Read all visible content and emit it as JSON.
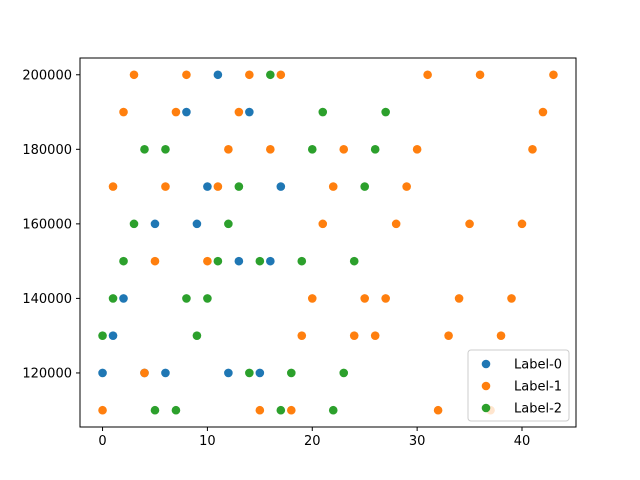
{
  "chart_data": {
    "type": "scatter",
    "title": "",
    "xlabel": "",
    "ylabel": "",
    "xlim": [
      -2.15,
      45.15
    ],
    "ylim": [
      105500,
      204500
    ],
    "x_ticks": [
      0,
      10,
      20,
      30,
      40
    ],
    "y_ticks": [
      120000,
      140000,
      160000,
      180000,
      200000
    ],
    "x_tick_labels": [
      "0",
      "10",
      "20",
      "30",
      "40"
    ],
    "y_tick_labels": [
      "120000",
      "140000",
      "160000",
      "180000",
      "200000"
    ],
    "grid": false,
    "legend_position": "lower-right",
    "series": [
      {
        "name": "Label-0",
        "color": "#1f77b4",
        "x": [
          0,
          1,
          2,
          4,
          5,
          6,
          8,
          9,
          10,
          11,
          12,
          13,
          14,
          15,
          16,
          17
        ],
        "y": [
          120000,
          130000,
          140000,
          120000,
          160000,
          120000,
          190000,
          160000,
          170000,
          200000,
          120000,
          150000,
          190000,
          120000,
          150000,
          170000
        ]
      },
      {
        "name": "Label-1",
        "color": "#ff7f0e",
        "x": [
          0,
          1,
          2,
          3,
          4,
          5,
          6,
          7,
          8,
          10,
          11,
          12,
          13,
          14,
          15,
          16,
          17,
          18,
          19,
          20,
          21,
          22,
          23,
          24,
          25,
          26,
          27,
          28,
          29,
          30,
          31,
          32,
          33,
          34,
          35,
          36,
          37,
          38,
          39,
          40,
          41,
          42,
          43
        ],
        "y": [
          110000,
          170000,
          190000,
          200000,
          120000,
          150000,
          170000,
          190000,
          200000,
          150000,
          170000,
          180000,
          190000,
          200000,
          110000,
          180000,
          200000,
          110000,
          130000,
          140000,
          160000,
          170000,
          180000,
          130000,
          140000,
          130000,
          140000,
          160000,
          170000,
          180000,
          200000,
          110000,
          130000,
          140000,
          160000,
          200000,
          110000,
          130000,
          140000,
          160000,
          180000,
          190000,
          200000
        ]
      },
      {
        "name": "Label-2",
        "color": "#2ca02c",
        "x": [
          0,
          1,
          2,
          3,
          4,
          5,
          6,
          7,
          8,
          9,
          10,
          11,
          12,
          13,
          14,
          15,
          16,
          17,
          18,
          19,
          20,
          21,
          22,
          23,
          24,
          25,
          26,
          27
        ],
        "y": [
          130000,
          140000,
          150000,
          160000,
          180000,
          110000,
          180000,
          110000,
          140000,
          130000,
          140000,
          150000,
          160000,
          170000,
          120000,
          150000,
          200000,
          110000,
          120000,
          150000,
          180000,
          190000,
          110000,
          120000,
          150000,
          170000,
          180000,
          190000
        ]
      }
    ]
  }
}
